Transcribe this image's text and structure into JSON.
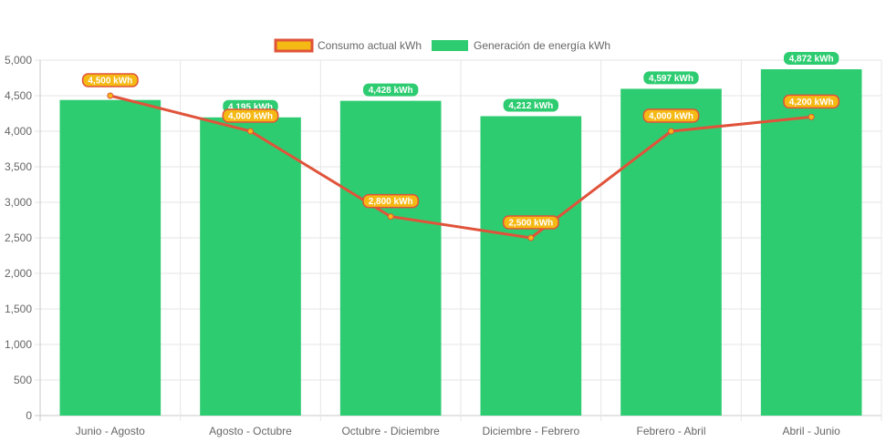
{
  "chart_data": {
    "type": "bar",
    "categories": [
      "Junio - Agosto",
      "Agosto - Octubre",
      "Octubre - Diciembre",
      "Diciembre - Febrero",
      "Febrero - Abril",
      "Abril - Junio"
    ],
    "series": [
      {
        "name": "Consumo actual kWh",
        "type": "line",
        "values": [
          4500,
          4000,
          2800,
          2500,
          4000,
          4200
        ],
        "labels": [
          "4,500 kWh",
          "4,000 kWh",
          "2,800 kWh",
          "2,500 kWh",
          "4,000 kWh",
          "4,200 kWh"
        ],
        "line_color": "#e0533a",
        "fill_color": "#f5b914"
      },
      {
        "name": "Generación de energía kWh",
        "type": "bar",
        "values": [
          4440,
          4195,
          4428,
          4212,
          4597,
          4872
        ],
        "labels": [
          "",
          "4,195 kWh",
          "4,428 kWh",
          "4,212 kWh",
          "4,597 kWh",
          "4,872 kWh"
        ],
        "color": "#2ecc71"
      }
    ],
    "y_ticks": [
      "0",
      "500",
      "1,000",
      "1,500",
      "2,000",
      "2,500",
      "3,000",
      "3,500",
      "4,000",
      "4,500",
      "5,000"
    ],
    "ylim": [
      0,
      5000
    ],
    "grid": true,
    "legend_position": "top"
  }
}
